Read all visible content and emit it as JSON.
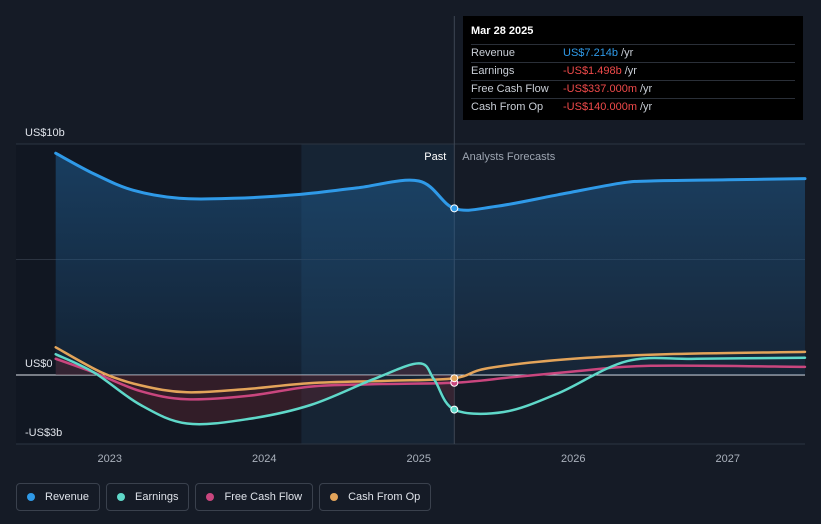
{
  "tooltip": {
    "date": "Mar 28 2025",
    "rows": [
      {
        "label": "Revenue",
        "value": "US$7.214b",
        "suffix": "/yr",
        "color": "#2f9ae8"
      },
      {
        "label": "Earnings",
        "value": "-US$1.498b",
        "suffix": "/yr",
        "color": "#f04a4a"
      },
      {
        "label": "Free Cash Flow",
        "value": "-US$337.000m",
        "suffix": "/yr",
        "color": "#f04a4a"
      },
      {
        "label": "Cash From Op",
        "value": "-US$140.000m",
        "suffix": "/yr",
        "color": "#f04a4a"
      }
    ]
  },
  "chart_data": {
    "type": "line",
    "y_labels": [
      "US$10b",
      "US$0",
      "-US$3b"
    ],
    "ylim": [
      -3,
      10
    ],
    "x_ticks": [
      {
        "label": "2023",
        "x": 2023.0
      },
      {
        "label": "2024",
        "x": 2024.0
      },
      {
        "label": "2025",
        "x": 2025.0
      },
      {
        "label": "2026",
        "x": 2026.0
      },
      {
        "label": "2027",
        "x": 2027.0
      }
    ],
    "xlim": [
      2022.6,
      2027.5
    ],
    "past_label": "Past",
    "forecast_label": "Analysts Forecasts",
    "divider_x": 2025.23,
    "highlight_start_x": 2024.24,
    "colors": {
      "revenue": "#2f9ae8",
      "earnings": "#5fd8c9",
      "fcf": "#c9467e",
      "cfo": "#e3a45a"
    },
    "series": [
      {
        "name": "Revenue",
        "key": "revenue",
        "points": [
          [
            2022.65,
            9.6
          ],
          [
            2022.9,
            8.7
          ],
          [
            2023.15,
            8.0
          ],
          [
            2023.45,
            7.65
          ],
          [
            2023.8,
            7.65
          ],
          [
            2024.2,
            7.8
          ],
          [
            2024.6,
            8.1
          ],
          [
            2025.0,
            8.4
          ],
          [
            2025.23,
            7.214
          ],
          [
            2025.5,
            7.3
          ],
          [
            2025.9,
            7.8
          ],
          [
            2026.3,
            8.3
          ],
          [
            2026.5,
            8.4
          ],
          [
            2027.0,
            8.45
          ],
          [
            2027.5,
            8.5
          ]
        ]
      },
      {
        "name": "Earnings",
        "key": "earnings",
        "points": [
          [
            2022.65,
            0.9
          ],
          [
            2022.9,
            0.1
          ],
          [
            2023.2,
            -1.3
          ],
          [
            2023.5,
            -2.1
          ],
          [
            2023.9,
            -1.9
          ],
          [
            2024.3,
            -1.3
          ],
          [
            2024.7,
            -0.2
          ],
          [
            2025.0,
            0.5
          ],
          [
            2025.1,
            -0.2
          ],
          [
            2025.23,
            -1.498
          ],
          [
            2025.55,
            -1.6
          ],
          [
            2025.9,
            -0.8
          ],
          [
            2026.35,
            0.6
          ],
          [
            2026.8,
            0.7
          ],
          [
            2027.5,
            0.75
          ]
        ]
      },
      {
        "name": "Free Cash Flow",
        "key": "fcf",
        "points": [
          [
            2022.65,
            0.7
          ],
          [
            2022.9,
            0.1
          ],
          [
            2023.2,
            -0.7
          ],
          [
            2023.5,
            -1.05
          ],
          [
            2023.9,
            -0.9
          ],
          [
            2024.3,
            -0.5
          ],
          [
            2024.7,
            -0.4
          ],
          [
            2025.23,
            -0.337
          ],
          [
            2025.6,
            -0.1
          ],
          [
            2026.0,
            0.15
          ],
          [
            2026.5,
            0.4
          ],
          [
            2027.5,
            0.35
          ]
        ]
      },
      {
        "name": "Cash From Op",
        "key": "cfo",
        "points": [
          [
            2022.65,
            1.2
          ],
          [
            2022.95,
            0.1
          ],
          [
            2023.2,
            -0.45
          ],
          [
            2023.5,
            -0.75
          ],
          [
            2023.9,
            -0.6
          ],
          [
            2024.3,
            -0.35
          ],
          [
            2024.8,
            -0.25
          ],
          [
            2025.23,
            -0.14
          ],
          [
            2025.45,
            0.3
          ],
          [
            2026.0,
            0.7
          ],
          [
            2026.6,
            0.9
          ],
          [
            2027.5,
            1.0
          ]
        ]
      }
    ]
  },
  "legend": [
    {
      "label": "Revenue",
      "color": "#2f9ae8"
    },
    {
      "label": "Earnings",
      "color": "#5fd8c9"
    },
    {
      "label": "Free Cash Flow",
      "color": "#c9467e"
    },
    {
      "label": "Cash From Op",
      "color": "#e3a45a"
    }
  ]
}
